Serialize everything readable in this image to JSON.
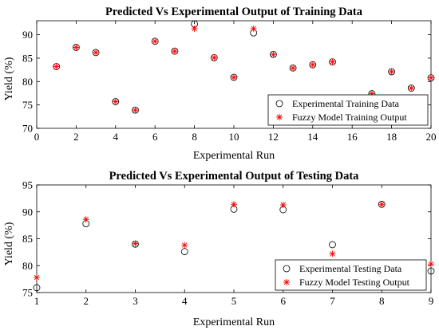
{
  "chart_data": [
    {
      "type": "scatter",
      "title": "Predicted Vs Experimental Output of Training Data",
      "xlabel": "Experimental Run",
      "ylabel": "Yield (%)",
      "xlim": [
        0,
        20
      ],
      "ylim": [
        70,
        93
      ],
      "xticks": [
        0,
        2,
        4,
        6,
        8,
        10,
        12,
        14,
        16,
        18,
        20
      ],
      "yticks": [
        70,
        75,
        80,
        85,
        90
      ],
      "grid": false,
      "legend_position": "bottom-right",
      "series": [
        {
          "name": "Experimental Training Data",
          "marker": "circle",
          "color": "#000000",
          "x": [
            1,
            2,
            3,
            4,
            5,
            6,
            7,
            8,
            9,
            10,
            11,
            12,
            13,
            14,
            15,
            17,
            18,
            19,
            20
          ],
          "y": [
            83.2,
            87.3,
            86.2,
            75.7,
            73.9,
            88.6,
            86.5,
            92.3,
            85.1,
            80.9,
            90.4,
            85.8,
            82.9,
            83.6,
            84.2,
            77.4,
            82.1,
            78.6,
            80.8
          ]
        },
        {
          "name": "Fuzzy Model Training Output",
          "marker": "asterisk",
          "color": "#ff0000",
          "x": [
            1,
            2,
            3,
            4,
            5,
            6,
            7,
            8,
            9,
            10,
            11,
            12,
            13,
            14,
            15,
            17,
            18,
            19,
            20
          ],
          "y": [
            83.2,
            87.3,
            86.2,
            75.7,
            73.9,
            88.6,
            86.5,
            91.3,
            85.1,
            80.9,
            91.3,
            85.8,
            82.9,
            83.6,
            84.2,
            77.4,
            82.1,
            78.6,
            80.8
          ]
        }
      ]
    },
    {
      "type": "scatter",
      "title": "Predicted Vs Experimental Output of Testing Data",
      "xlabel": "Experimental Run",
      "ylabel": "Yield (%)",
      "xlim": [
        1,
        9
      ],
      "ylim": [
        75,
        95
      ],
      "xticks": [
        1,
        2,
        3,
        4,
        5,
        6,
        7,
        8,
        9
      ],
      "yticks": [
        75,
        80,
        85,
        90,
        95
      ],
      "grid": false,
      "legend_position": "bottom-right",
      "series": [
        {
          "name": "Experimental Testing Data",
          "marker": "circle",
          "color": "#000000",
          "x": [
            1,
            2,
            3,
            4,
            5,
            6,
            7,
            8,
            9
          ],
          "y": [
            75.9,
            87.8,
            84.0,
            82.6,
            90.5,
            90.4,
            83.9,
            91.4,
            79.0
          ]
        },
        {
          "name": "Fuzzy Model Testing Output",
          "marker": "asterisk",
          "color": "#ff0000",
          "x": [
            1,
            2,
            3,
            4,
            5,
            6,
            7,
            8,
            9
          ],
          "y": [
            77.8,
            88.6,
            84.1,
            83.8,
            91.4,
            91.3,
            82.2,
            91.4,
            80.3
          ]
        }
      ]
    }
  ]
}
